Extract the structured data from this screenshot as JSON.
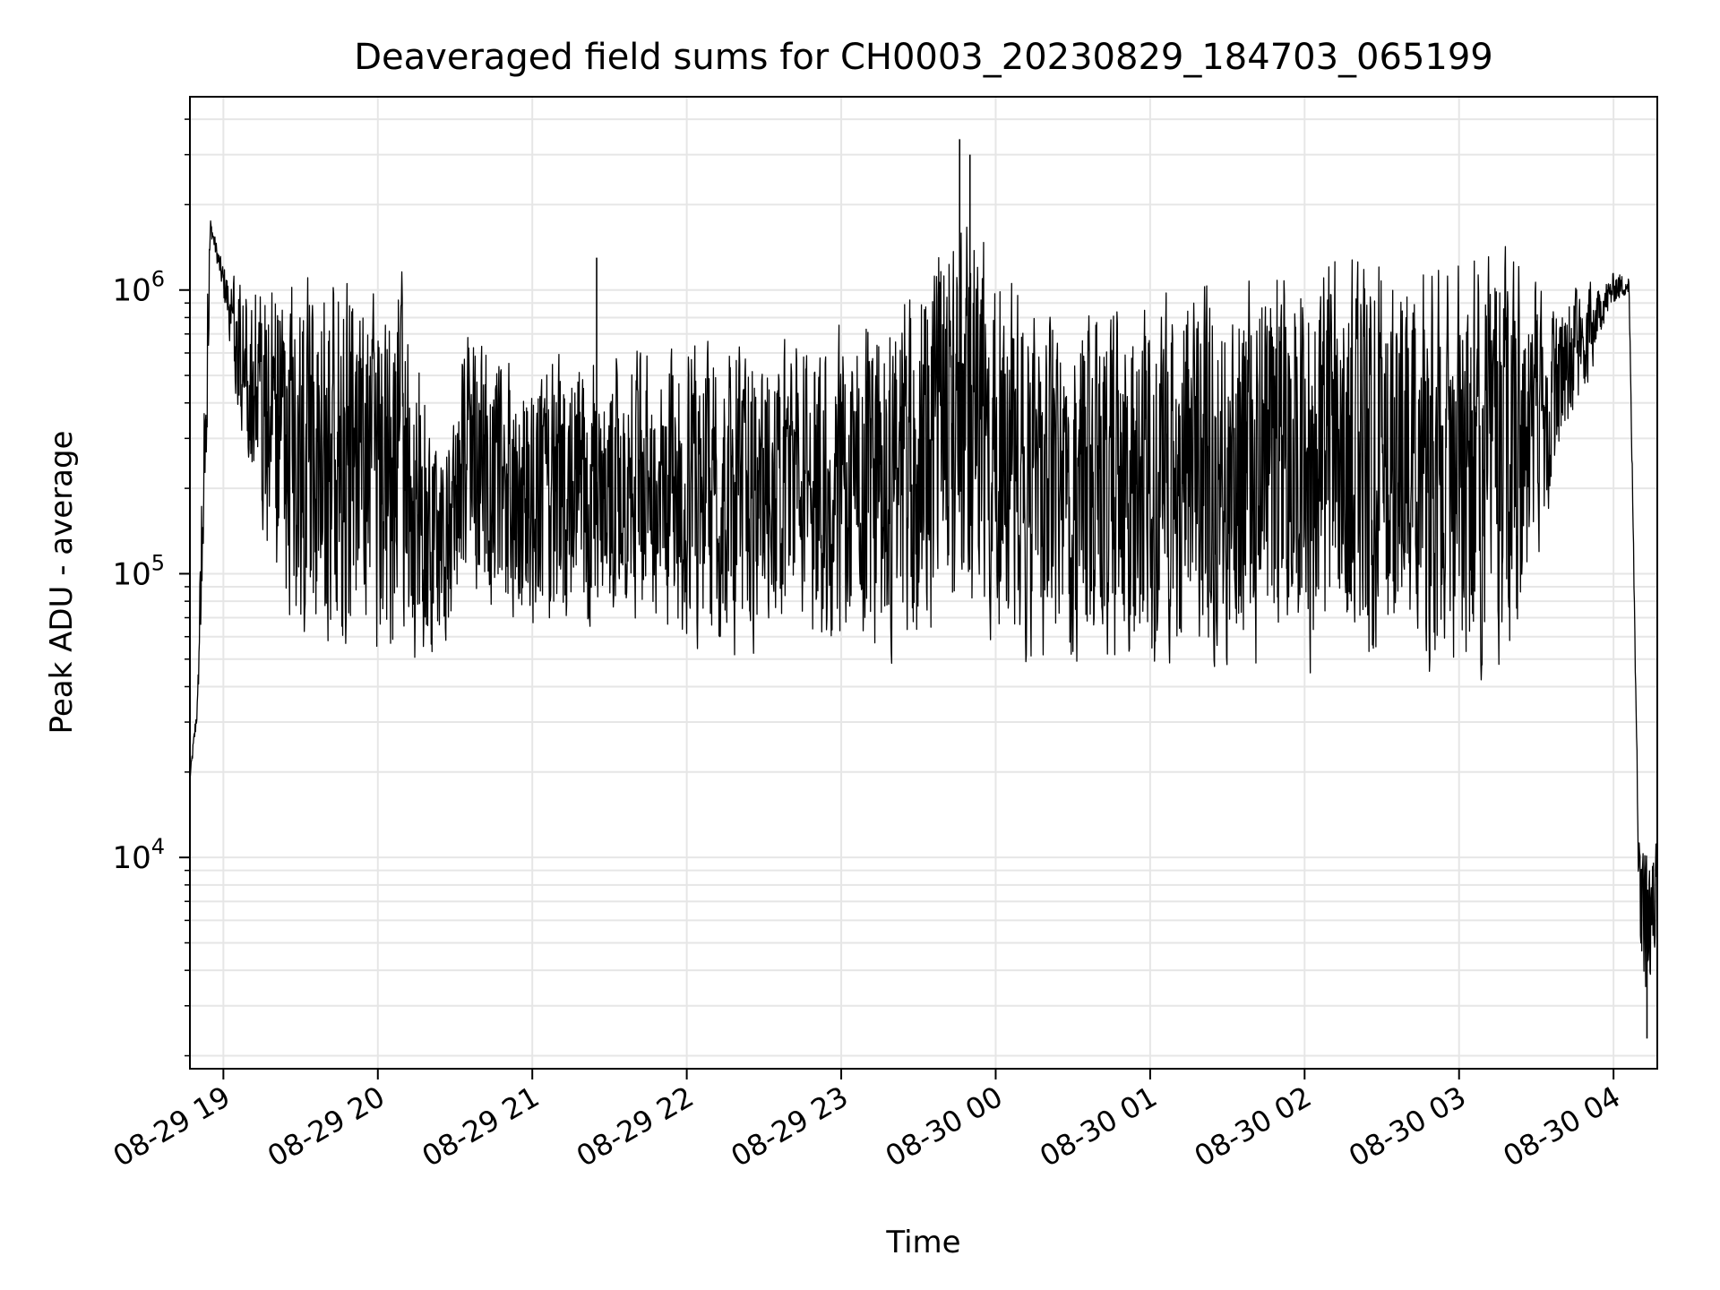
{
  "chart_data": {
    "type": "line",
    "title": "Deaveraged field sums for CH0003_20230829_184703_065199",
    "xlabel": "Time",
    "ylabel": "Peak ADU - average",
    "yscale": "log",
    "ylim": [
      1800,
      4800000
    ],
    "xlim": [
      "2023-08-29 18:47",
      "2023-08-30 04:17"
    ],
    "grid": true,
    "line_color": "#000000",
    "grid_color": "#e6e6e6",
    "x_ticks": [
      {
        "value": "2023-08-29 19:00",
        "label": "08-29 19"
      },
      {
        "value": "2023-08-29 20:00",
        "label": "08-29 20"
      },
      {
        "value": "2023-08-29 21:00",
        "label": "08-29 21"
      },
      {
        "value": "2023-08-29 22:00",
        "label": "08-29 22"
      },
      {
        "value": "2023-08-29 23:00",
        "label": "08-29 23"
      },
      {
        "value": "2023-08-30 00:00",
        "label": "08-30 00"
      },
      {
        "value": "2023-08-30 01:00",
        "label": "08-30 01"
      },
      {
        "value": "2023-08-30 02:00",
        "label": "08-30 02"
      },
      {
        "value": "2023-08-30 03:00",
        "label": "08-30 03"
      },
      {
        "value": "2023-08-30 04:00",
        "label": "08-30 04"
      }
    ],
    "y_ticks": [
      {
        "value": 10000,
        "base": "10",
        "exp": "4"
      },
      {
        "value": 100000,
        "base": "10",
        "exp": "5"
      },
      {
        "value": 1000000,
        "base": "10",
        "exp": "6"
      }
    ],
    "series": [
      {
        "envelope": [
          {
            "t": "2023-08-29 18:47",
            "low": 18000,
            "high": 20000
          },
          {
            "t": "2023-08-29 18:50",
            "low": 28000,
            "high": 42000
          },
          {
            "t": "2023-08-29 18:53",
            "low": 130000,
            "high": 1500000
          },
          {
            "t": "2023-08-29 18:55",
            "low": 1500000,
            "high": 1900000
          },
          {
            "t": "2023-08-29 18:58",
            "low": 1100000,
            "high": 1500000
          },
          {
            "t": "2023-08-29 19:05",
            "low": 400000,
            "high": 1200000
          },
          {
            "t": "2023-08-29 19:15",
            "low": 100000,
            "high": 1250000
          },
          {
            "t": "2023-08-29 19:30",
            "low": 50000,
            "high": 1250000
          },
          {
            "t": "2023-08-29 19:50",
            "low": 40000,
            "high": 1300000
          },
          {
            "t": "2023-08-29 20:10",
            "low": 40000,
            "high": 1300000
          },
          {
            "t": "2023-08-29 20:25",
            "low": 50000,
            "high": 300000
          },
          {
            "t": "2023-08-29 20:35",
            "low": 80000,
            "high": 800000
          },
          {
            "t": "2023-08-29 20:50",
            "low": 60000,
            "high": 600000
          },
          {
            "t": "2023-08-29 21:15",
            "low": 55000,
            "high": 700000
          },
          {
            "t": "2023-08-29 21:45",
            "low": 55000,
            "high": 700000
          },
          {
            "t": "2023-08-29 22:15",
            "low": 45000,
            "high": 700000
          },
          {
            "t": "2023-08-29 22:45",
            "low": 50000,
            "high": 750000
          },
          {
            "t": "2023-08-29 23:15",
            "low": 45000,
            "high": 900000
          },
          {
            "t": "2023-08-29 23:45",
            "low": 50000,
            "high": 2500000
          },
          {
            "t": "2023-08-30 00:15",
            "low": 45000,
            "high": 900000
          },
          {
            "t": "2023-08-30 00:45",
            "low": 40000,
            "high": 950000
          },
          {
            "t": "2023-08-30 01:30",
            "low": 40000,
            "high": 1300000
          },
          {
            "t": "2023-08-30 02:00",
            "low": 40000,
            "high": 1500000
          },
          {
            "t": "2023-08-30 02:45",
            "low": 40000,
            "high": 1500000
          },
          {
            "t": "2023-08-30 03:20",
            "low": 40000,
            "high": 1500000
          },
          {
            "t": "2023-08-30 03:40",
            "low": 250000,
            "high": 1000000
          },
          {
            "t": "2023-08-30 04:00",
            "low": 800000,
            "high": 1300000
          },
          {
            "t": "2023-08-30 04:06",
            "low": 900000,
            "high": 1200000
          },
          {
            "t": "2023-08-30 04:10",
            "low": 5000,
            "high": 13000
          },
          {
            "t": "2023-08-30 04:13",
            "low": 2300,
            "high": 12000
          },
          {
            "t": "2023-08-30 04:17",
            "low": 6000,
            "high": 12000
          }
        ],
        "peaks": [
          {
            "t": "2023-08-29 23:46",
            "value": 3400000
          },
          {
            "t": "2023-08-29 23:50",
            "value": 3000000
          },
          {
            "t": "2023-08-29 21:25",
            "value": 1300000
          },
          {
            "t": "2023-08-30 04:13",
            "value": 2300
          }
        ]
      }
    ]
  }
}
